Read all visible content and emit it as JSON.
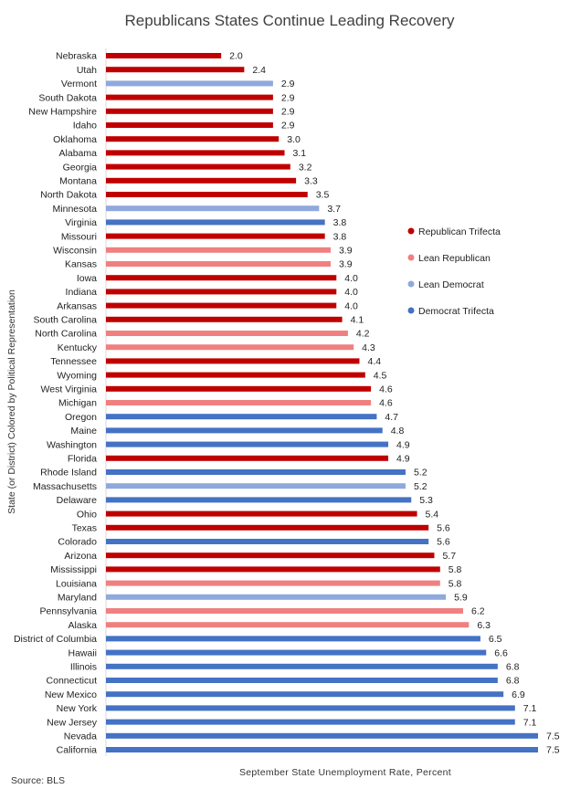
{
  "chart_data": {
    "type": "bar",
    "orientation": "horizontal",
    "title": "Republicans States Continue Leading Recovery",
    "ylabel": "State (or District) Colored by Political Representation",
    "xlabel": "September  State Unemployment  Rate, Percent",
    "source": "Source:  BLS",
    "xlim": [
      0,
      7.5
    ],
    "grid": false,
    "legend_position": "right",
    "groups": [
      {
        "key": "rep",
        "name": "Republican Trifecta",
        "color": "#c00000"
      },
      {
        "key": "lrep",
        "name": "Lean Republican",
        "color": "#f08080"
      },
      {
        "key": "ldem",
        "name": "Lean Democrat",
        "color": "#8fa9dc"
      },
      {
        "key": "dem",
        "name": "Democrat Trifecta",
        "color": "#4472c4"
      }
    ],
    "categories": [
      "Nebraska",
      "Utah",
      "Vermont",
      "South Dakota",
      "New Hampshire",
      "Idaho",
      "Oklahoma",
      "Alabama",
      "Georgia",
      "Montana",
      "North Dakota",
      "Minnesota",
      "Virginia",
      "Missouri",
      "Wisconsin",
      "Kansas",
      "Iowa",
      "Indiana",
      "Arkansas",
      "South Carolina",
      "North Carolina",
      "Kentucky",
      "Tennessee",
      "Wyoming",
      "West Virginia",
      "Michigan",
      "Oregon",
      "Maine",
      "Washington",
      "Florida",
      "Rhode Island",
      "Massachusetts",
      "Delaware",
      "Ohio",
      "Texas",
      "Colorado",
      "Arizona",
      "Mississippi",
      "Louisiana",
      "Maryland",
      "Pennsylvania",
      "Alaska",
      "District of Columbia",
      "Hawaii",
      "Illinois",
      "Connecticut",
      "New Mexico",
      "New York",
      "New Jersey",
      "Nevada",
      "California"
    ],
    "values": [
      2.0,
      2.4,
      2.9,
      2.9,
      2.9,
      2.9,
      3.0,
      3.1,
      3.2,
      3.3,
      3.5,
      3.7,
      3.8,
      3.8,
      3.9,
      3.9,
      4.0,
      4.0,
      4.0,
      4.1,
      4.2,
      4.3,
      4.4,
      4.5,
      4.6,
      4.6,
      4.7,
      4.8,
      4.9,
      4.9,
      5.2,
      5.2,
      5.3,
      5.4,
      5.6,
      5.6,
      5.7,
      5.8,
      5.8,
      5.9,
      6.2,
      6.3,
      6.5,
      6.6,
      6.8,
      6.8,
      6.9,
      7.1,
      7.1,
      7.5,
      7.5
    ],
    "value_labels": [
      "2.0",
      "2.4",
      "2.9",
      "2.9",
      "2.9",
      "2.9",
      "3.0",
      "3.1",
      "3.2",
      "3.3",
      "3.5",
      "3.7",
      "3.8",
      "3.8",
      "3.9",
      "3.9",
      "4.0",
      "4.0",
      "4.0",
      "4.1",
      "4.2",
      "4.3",
      "4.4",
      "4.5",
      "4.6",
      "4.6",
      "4.7",
      "4.8",
      "4.9",
      "4.9",
      "5.2",
      "5.2",
      "5.3",
      "5.4",
      "5.6",
      "5.6",
      "5.7",
      "5.8",
      "5.8",
      "5.9",
      "6.2",
      "6.3",
      "6.5",
      "6.6",
      "6.8",
      "6.8",
      "6.9",
      "7.1",
      "7.1",
      "7.5",
      "7.5"
    ],
    "bar_groups": [
      "rep",
      "rep",
      "ldem",
      "rep",
      "rep",
      "rep",
      "rep",
      "rep",
      "rep",
      "rep",
      "rep",
      "ldem",
      "dem",
      "rep",
      "lrep",
      "lrep",
      "rep",
      "rep",
      "rep",
      "rep",
      "lrep",
      "lrep",
      "rep",
      "rep",
      "rep",
      "lrep",
      "dem",
      "dem",
      "dem",
      "rep",
      "dem",
      "ldem",
      "dem",
      "rep",
      "rep",
      "dem",
      "rep",
      "rep",
      "lrep",
      "ldem",
      "lrep",
      "lrep",
      "dem",
      "dem",
      "dem",
      "dem",
      "dem",
      "dem",
      "dem",
      "dem",
      "dem"
    ]
  }
}
